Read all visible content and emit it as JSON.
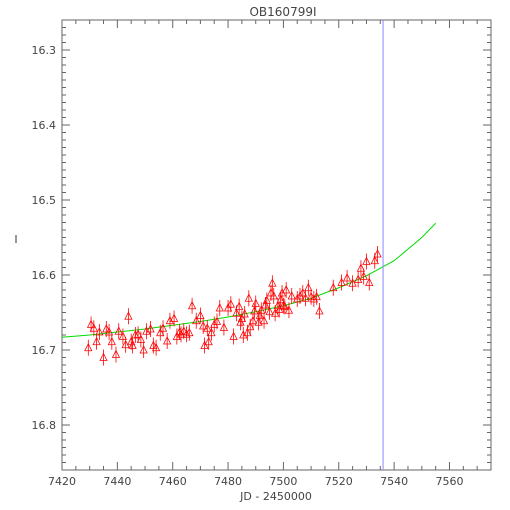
{
  "chart_data": {
    "type": "scatter",
    "title": "OB160799I",
    "xlabel": "JD - 2450000",
    "ylabel": "I",
    "xlim": [
      7420,
      7575
    ],
    "ylim": [
      16.86,
      16.26
    ],
    "y_inverted": true,
    "grid": false,
    "xticks": [
      7420,
      7440,
      7460,
      7480,
      7500,
      7520,
      7540,
      7560
    ],
    "yticks": [
      16.3,
      16.4,
      16.5,
      16.6,
      16.7,
      16.8
    ],
    "xtick_labels": [
      "7420",
      "7440",
      "7460",
      "7480",
      "7500",
      "7520",
      "7540",
      "7560"
    ],
    "ytick_labels": [
      "16.3",
      "16.4",
      "16.5",
      "16.6",
      "16.7",
      "16.8"
    ],
    "colors": {
      "points": "#ff0000",
      "model": "#00dd00",
      "vline": "#8888ff",
      "axes": "#666666"
    },
    "vline": {
      "x": 7536
    },
    "series": [
      {
        "kind": "points",
        "marker": "triangle-with-errorbar",
        "x": [
          7429.5,
          7430.5,
          7431.5,
          7432.5,
          7433.5,
          7435,
          7436,
          7437,
          7438,
          7439.5,
          7440.5,
          7442,
          7443,
          7444,
          7445,
          7445.5,
          7446.5,
          7447.5,
          7448.5,
          7449.5,
          7450.5,
          7452,
          7453,
          7454,
          7455.5,
          7456.5,
          7458,
          7459,
          7460.5,
          7461.5,
          7462.5,
          7463,
          7464,
          7465,
          7466,
          7467,
          7468.5,
          7470,
          7471,
          7471.5,
          7472.5,
          7473,
          7474,
          7475,
          7476,
          7477,
          7478.5,
          7480,
          7481,
          7482,
          7483,
          7484,
          7484.5,
          7485,
          7485.5,
          7486,
          7487,
          7487.5,
          7488,
          7489,
          7489.5,
          7490,
          7491,
          7491.5,
          7492,
          7493,
          7493.5,
          7494,
          7495,
          7495.5,
          7496,
          7496.5,
          7497,
          7498,
          7498.5,
          7499,
          7499.5,
          7500,
          7500.5,
          7501,
          7502,
          7503,
          7505,
          7506,
          7507,
          7508,
          7509,
          7510,
          7511,
          7512,
          7513,
          7518,
          7521,
          7523,
          7525,
          7527,
          7528,
          7529,
          7530,
          7531,
          7533,
          7534
        ],
        "y": [
          16.697,
          16.666,
          16.671,
          16.689,
          16.676,
          16.71,
          16.672,
          16.676,
          16.689,
          16.706,
          16.675,
          16.682,
          16.693,
          16.655,
          16.689,
          16.694,
          16.68,
          16.679,
          16.686,
          16.7,
          16.675,
          16.672,
          16.694,
          16.697,
          16.677,
          16.671,
          16.688,
          16.661,
          16.658,
          16.682,
          16.676,
          16.679,
          16.675,
          16.679,
          16.677,
          16.641,
          16.661,
          16.654,
          16.668,
          16.694,
          16.671,
          16.689,
          16.677,
          16.666,
          16.662,
          16.644,
          16.67,
          16.644,
          16.639,
          16.682,
          16.651,
          16.642,
          16.663,
          16.658,
          16.68,
          16.652,
          16.677,
          16.631,
          16.669,
          16.661,
          16.648,
          16.638,
          16.663,
          16.654,
          16.647,
          16.661,
          16.64,
          16.634,
          16.649,
          16.624,
          16.611,
          16.628,
          16.651,
          16.641,
          16.646,
          16.633,
          16.624,
          16.641,
          16.642,
          16.62,
          16.647,
          16.628,
          16.632,
          16.628,
          16.624,
          16.631,
          16.617,
          16.629,
          16.632,
          16.629,
          16.648,
          16.617,
          16.61,
          16.604,
          16.611,
          16.606,
          16.591,
          16.602,
          16.582,
          16.61,
          16.581,
          16.572
        ]
      },
      {
        "kind": "model",
        "x": [
          7420,
          7430,
          7440,
          7450,
          7460,
          7470,
          7480,
          7490,
          7500,
          7510,
          7520,
          7530,
          7540,
          7550,
          7555
        ],
        "y": [
          16.683,
          16.68,
          16.676,
          16.672,
          16.667,
          16.662,
          16.656,
          16.649,
          16.641,
          16.631,
          16.617,
          16.601,
          16.581,
          16.55,
          16.531
        ]
      }
    ]
  }
}
